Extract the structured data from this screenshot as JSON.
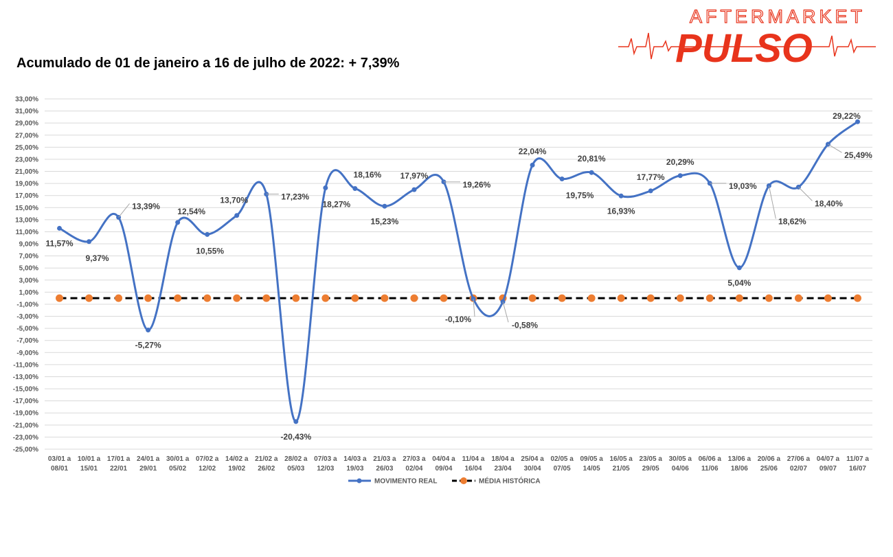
{
  "headline": "Acumulado de 01 de janeiro a 16 de julho de 2022: + 7,39%",
  "logo": {
    "top_text": "AFTERMARKET",
    "main_text": "PULSO",
    "color": "#e8341c"
  },
  "colors": {
    "real": "#4472c4",
    "media_line": "#000000",
    "media_marker": "#ed7d31",
    "grid": "#d9d9d9"
  },
  "chart_data": {
    "type": "line",
    "title": "",
    "xlabel": "",
    "ylabel": "",
    "ylim": [
      -25,
      33
    ],
    "y_step": 2,
    "grid": true,
    "legend_position": "bottom",
    "categories": [
      [
        "03/01 a",
        "08/01"
      ],
      [
        "10/01 a",
        "15/01"
      ],
      [
        "17/01 a",
        "22/01"
      ],
      [
        "24/01 a",
        "29/01"
      ],
      [
        "30/01 a",
        "05/02"
      ],
      [
        "07/02 a",
        "12/02"
      ],
      [
        "14/02 a",
        "19/02"
      ],
      [
        "21/02 a",
        "26/02"
      ],
      [
        "28/02 a",
        "05/03"
      ],
      [
        "07/03 a",
        "12/03"
      ],
      [
        "14/03 a",
        "19/03"
      ],
      [
        "21/03 a",
        "26/03"
      ],
      [
        "27/03 a",
        "02/04"
      ],
      [
        "04/04 a",
        "09/04"
      ],
      [
        "11/04 a",
        "16/04"
      ],
      [
        "18/04 a",
        "23/04"
      ],
      [
        "25/04 a",
        "30/04"
      ],
      [
        "02/05 a",
        "07/05"
      ],
      [
        "09/05 a",
        "14/05"
      ],
      [
        "16/05 a",
        "21/05"
      ],
      [
        "23/05 a",
        "29/05"
      ],
      [
        "30/05 a",
        "04/06"
      ],
      [
        "06/06 a",
        "11/06"
      ],
      [
        "13/06 a",
        "18/06"
      ],
      [
        "20/06 a",
        "25/06"
      ],
      [
        "27/06 a",
        "02/07"
      ],
      [
        "04/07 a",
        "09/07"
      ],
      [
        "11/07 a",
        "16/07"
      ]
    ],
    "series": [
      {
        "name": "MOVIMENTO REAL",
        "values": [
          11.57,
          9.37,
          13.39,
          -5.27,
          12.54,
          10.55,
          13.7,
          17.23,
          -20.43,
          18.27,
          18.16,
          15.23,
          17.97,
          19.26,
          -0.1,
          -0.58,
          22.04,
          19.75,
          20.81,
          16.93,
          17.77,
          20.29,
          19.03,
          5.04,
          18.62,
          18.4,
          25.49,
          29.22
        ],
        "labels": [
          "11,57%",
          "9,37%",
          "13,39%",
          "-5,27%",
          "12,54%",
          "10,55%",
          "13,70%",
          "17,23%",
          "-20,43%",
          "18,27%",
          "18,16%",
          "15,23%",
          "17,97%",
          "19,26%",
          "-0,10%",
          "-0,58%",
          "22,04%",
          "19,75%",
          "20,81%",
          "16,93%",
          "17,77%",
          "20,29%",
          "19,03%",
          "5,04%",
          "18,62%",
          "18,40%",
          "25,49%",
          "29,22%"
        ]
      },
      {
        "name": "MÉDIA HISTÓRICA",
        "values": [
          0,
          0,
          0,
          0,
          0,
          0,
          0,
          0,
          0,
          0,
          0,
          0,
          0,
          0,
          0,
          0,
          0,
          0,
          0,
          0,
          0,
          0,
          0,
          0,
          0,
          0,
          0,
          0
        ]
      }
    ]
  }
}
